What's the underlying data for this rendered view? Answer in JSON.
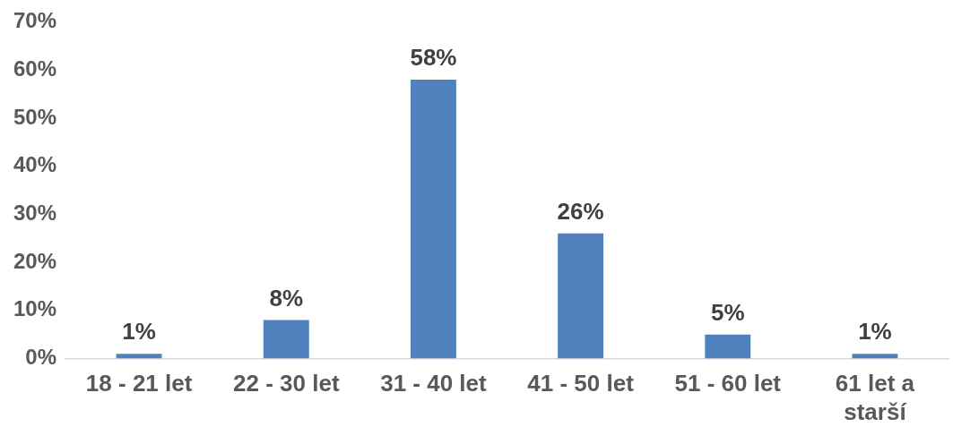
{
  "chart_data": {
    "type": "bar",
    "categories": [
      "18 - 21 let",
      "22 - 30 let",
      "31 - 40 let",
      "41 - 50 let",
      "51 - 60 let",
      "61 let a starší"
    ],
    "values": [
      1,
      8,
      58,
      26,
      5,
      1
    ],
    "value_labels": [
      "1%",
      "8%",
      "58%",
      "26%",
      "5%",
      "1%"
    ],
    "color": "#4f81bd",
    "ylim": [
      0,
      70
    ],
    "yticks": [
      {
        "value": 0,
        "label": "0%"
      },
      {
        "value": 10,
        "label": "10%"
      },
      {
        "value": 20,
        "label": "20%"
      },
      {
        "value": 30,
        "label": "30%"
      },
      {
        "value": 40,
        "label": "40%"
      },
      {
        "value": 50,
        "label": "50%"
      },
      {
        "value": 60,
        "label": "60%"
      },
      {
        "value": 70,
        "label": "70%"
      }
    ],
    "grid": false,
    "legend": false
  }
}
